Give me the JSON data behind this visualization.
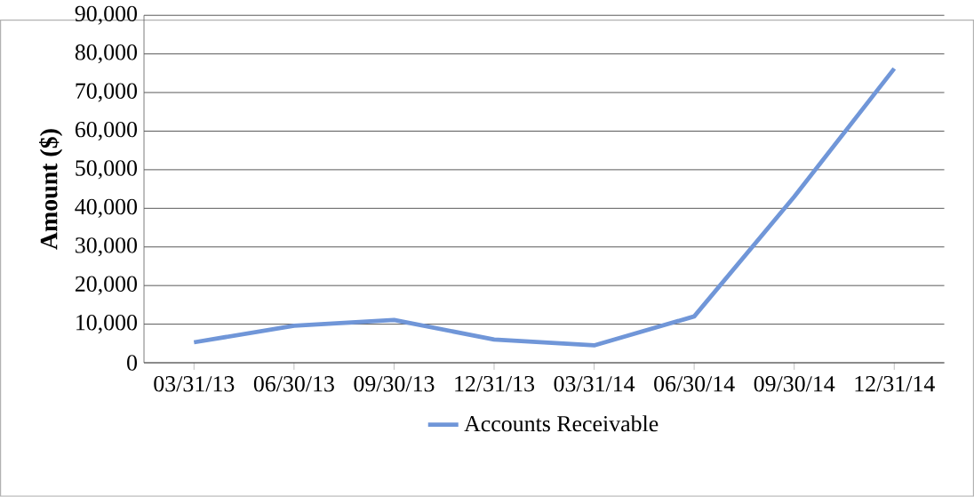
{
  "chart_data": {
    "type": "line",
    "ylabel": "Amount ($)",
    "categories": [
      "03/31/13",
      "06/30/13",
      "09/30/13",
      "12/31/13",
      "03/31/14",
      "06/30/14",
      "09/30/14",
      "12/31/14"
    ],
    "series": [
      {
        "name": "Accounts Receivable",
        "color": "#7096d8",
        "values": [
          5300,
          9600,
          11100,
          6000,
          4500,
          12000,
          43000,
          76200
        ]
      }
    ],
    "ylim": [
      0,
      90000
    ],
    "yticks": [
      {
        "value": 0,
        "label": "0"
      },
      {
        "value": 10000,
        "label": "10,000"
      },
      {
        "value": 20000,
        "label": "20,000"
      },
      {
        "value": 30000,
        "label": "30,000"
      },
      {
        "value": 40000,
        "label": "40,000"
      },
      {
        "value": 50000,
        "label": "50,000"
      },
      {
        "value": 60000,
        "label": "60,000"
      },
      {
        "value": 70000,
        "label": "70,000"
      },
      {
        "value": 80000,
        "label": "80,000"
      },
      {
        "value": 90000,
        "label": "90,000"
      }
    ],
    "grid": "y",
    "legend": "bottom",
    "marker": "none",
    "line_style": "solid"
  }
}
